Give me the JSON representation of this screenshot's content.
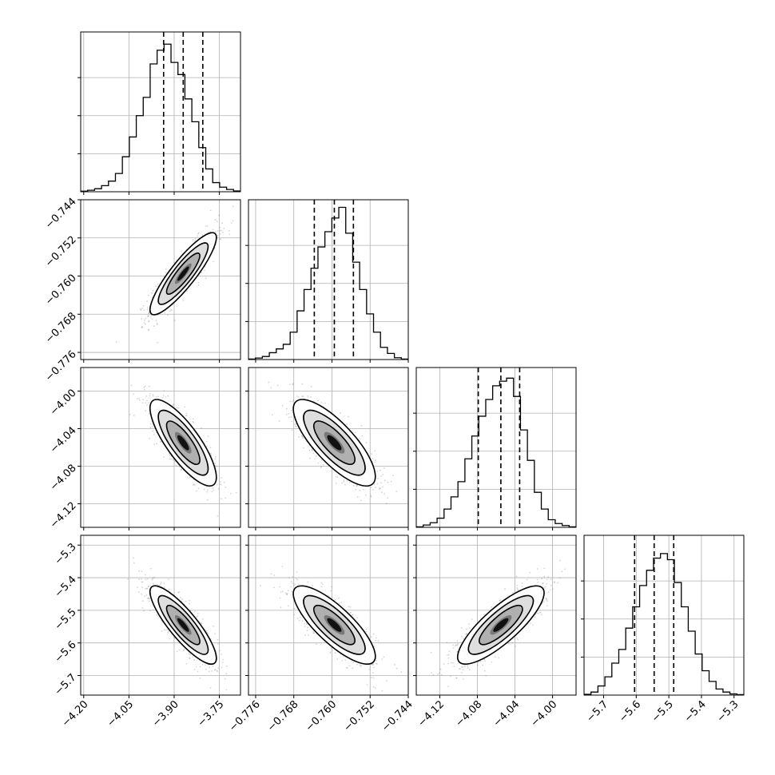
{
  "chart_data": {
    "type": "corner",
    "grid": true,
    "legend": "none",
    "parameters": [
      {
        "range": [
          -4.21,
          -3.68
        ],
        "ticks": [
          -4.2,
          -4.05,
          -3.9,
          -3.75
        ],
        "tick_labels": [
          "−4.20",
          "−4.05",
          "−3.90",
          "−3.75"
        ],
        "median": -3.87,
        "q16": -3.935,
        "q84": -3.805,
        "hist": [
          0.004,
          0.01,
          0.02,
          0.04,
          0.07,
          0.12,
          0.23,
          0.36,
          0.5,
          0.62,
          0.84,
          0.93,
          0.97,
          0.85,
          0.77,
          0.61,
          0.46,
          0.29,
          0.15,
          0.06,
          0.03,
          0.015,
          0.005
        ]
      },
      {
        "range": [
          -0.7775,
          -0.744
        ],
        "ticks": [
          -0.776,
          -0.768,
          -0.76,
          -0.752,
          -0.744
        ],
        "tick_labels": [
          "−0.776",
          "−0.768",
          "−0.760",
          "−0.752",
          "−0.744"
        ],
        "median": -0.7595,
        "q16": -0.7637,
        "q84": -0.7555,
        "hist": [
          0.003,
          0.01,
          0.02,
          0.045,
          0.07,
          0.1,
          0.18,
          0.32,
          0.46,
          0.6,
          0.74,
          0.84,
          0.93,
          1.0,
          0.83,
          0.64,
          0.46,
          0.3,
          0.18,
          0.08,
          0.04,
          0.012,
          0.003
        ]
      },
      {
        "range": [
          -4.145,
          -3.975
        ],
        "ticks": [
          -4.12,
          -4.08,
          -4.04,
          -4.0
        ],
        "tick_labels": [
          "−4.12",
          "−4.08",
          "−4.04",
          "−4.00"
        ],
        "median": -4.055,
        "q16": -4.079,
        "q84": -4.035,
        "hist": [
          0.003,
          0.015,
          0.03,
          0.06,
          0.12,
          0.2,
          0.3,
          0.45,
          0.6,
          0.73,
          0.84,
          0.93,
          0.96,
          0.98,
          0.86,
          0.64,
          0.44,
          0.23,
          0.12,
          0.05,
          0.025,
          0.012,
          0.003
        ]
      },
      {
        "range": [
          -5.76,
          -5.27
        ],
        "ticks": [
          -5.7,
          -5.6,
          -5.5,
          -5.4,
          -5.3
        ],
        "tick_labels": [
          "−5.7",
          "−5.6",
          "−5.5",
          "−5.4",
          "−5.3"
        ],
        "median": -5.545,
        "q16": -5.605,
        "q84": -5.485,
        "hist": [
          0.005,
          0.02,
          0.06,
          0.12,
          0.21,
          0.3,
          0.44,
          0.58,
          0.72,
          0.82,
          0.9,
          0.93,
          0.89,
          0.74,
          0.58,
          0.42,
          0.27,
          0.16,
          0.09,
          0.04,
          0.02,
          0.008,
          0.003
        ]
      }
    ],
    "correlations": [
      [
        1.0,
        0.88,
        -0.8,
        -0.85
      ],
      [
        0.88,
        1.0,
        -0.78,
        -0.8
      ],
      [
        -0.8,
        -0.78,
        1.0,
        0.82
      ],
      [
        -0.85,
        -0.8,
        0.82,
        1.0
      ]
    ],
    "stds": [
      0.055,
      0.0043,
      0.023,
      0.06
    ],
    "means": [
      -3.87,
      -0.7595,
      -4.055,
      -5.545
    ],
    "contour_levels_sigma": [
      0.5,
      1.0,
      1.5,
      2.0
    ]
  }
}
